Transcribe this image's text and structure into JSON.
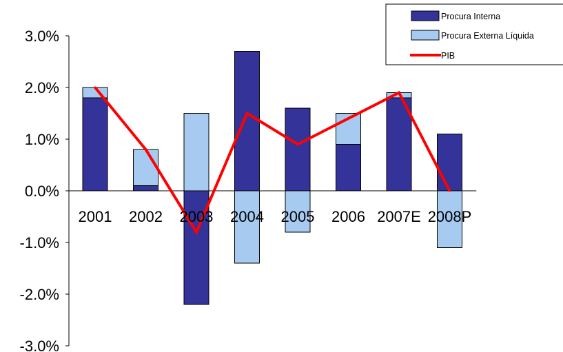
{
  "chart_data": {
    "type": "bar",
    "categories": [
      "2001",
      "2002",
      "2003",
      "2004",
      "2005",
      "2006",
      "2007E",
      "2008P"
    ],
    "series": [
      {
        "name": "Procura Interna",
        "kind": "bar",
        "color": "#333399",
        "values": [
          1.8,
          0.1,
          -2.2,
          2.7,
          1.6,
          0.9,
          1.8,
          1.1
        ]
      },
      {
        "name": "Procura Externa Líquida",
        "kind": "bar",
        "color": "#a6caf0",
        "values": [
          0.2,
          0.7,
          1.5,
          -1.4,
          -0.8,
          0.6,
          0.1,
          -1.1
        ]
      },
      {
        "name": "PIB",
        "kind": "line",
        "color": "#ff0000",
        "values": [
          2.0,
          0.8,
          -0.8,
          1.5,
          0.9,
          1.4,
          1.9,
          0.0
        ]
      }
    ],
    "stacked": true,
    "ylim": [
      -3.0,
      3.0
    ],
    "yticks": [
      "3.0%",
      "2.0%",
      "1.0%",
      "0.0%",
      "-1.0%",
      "-2.0%",
      "-3.0%"
    ],
    "ytick_values": [
      3,
      2,
      1,
      0,
      -1,
      -2,
      -3
    ],
    "legend_position": "top-right",
    "grid": false
  }
}
